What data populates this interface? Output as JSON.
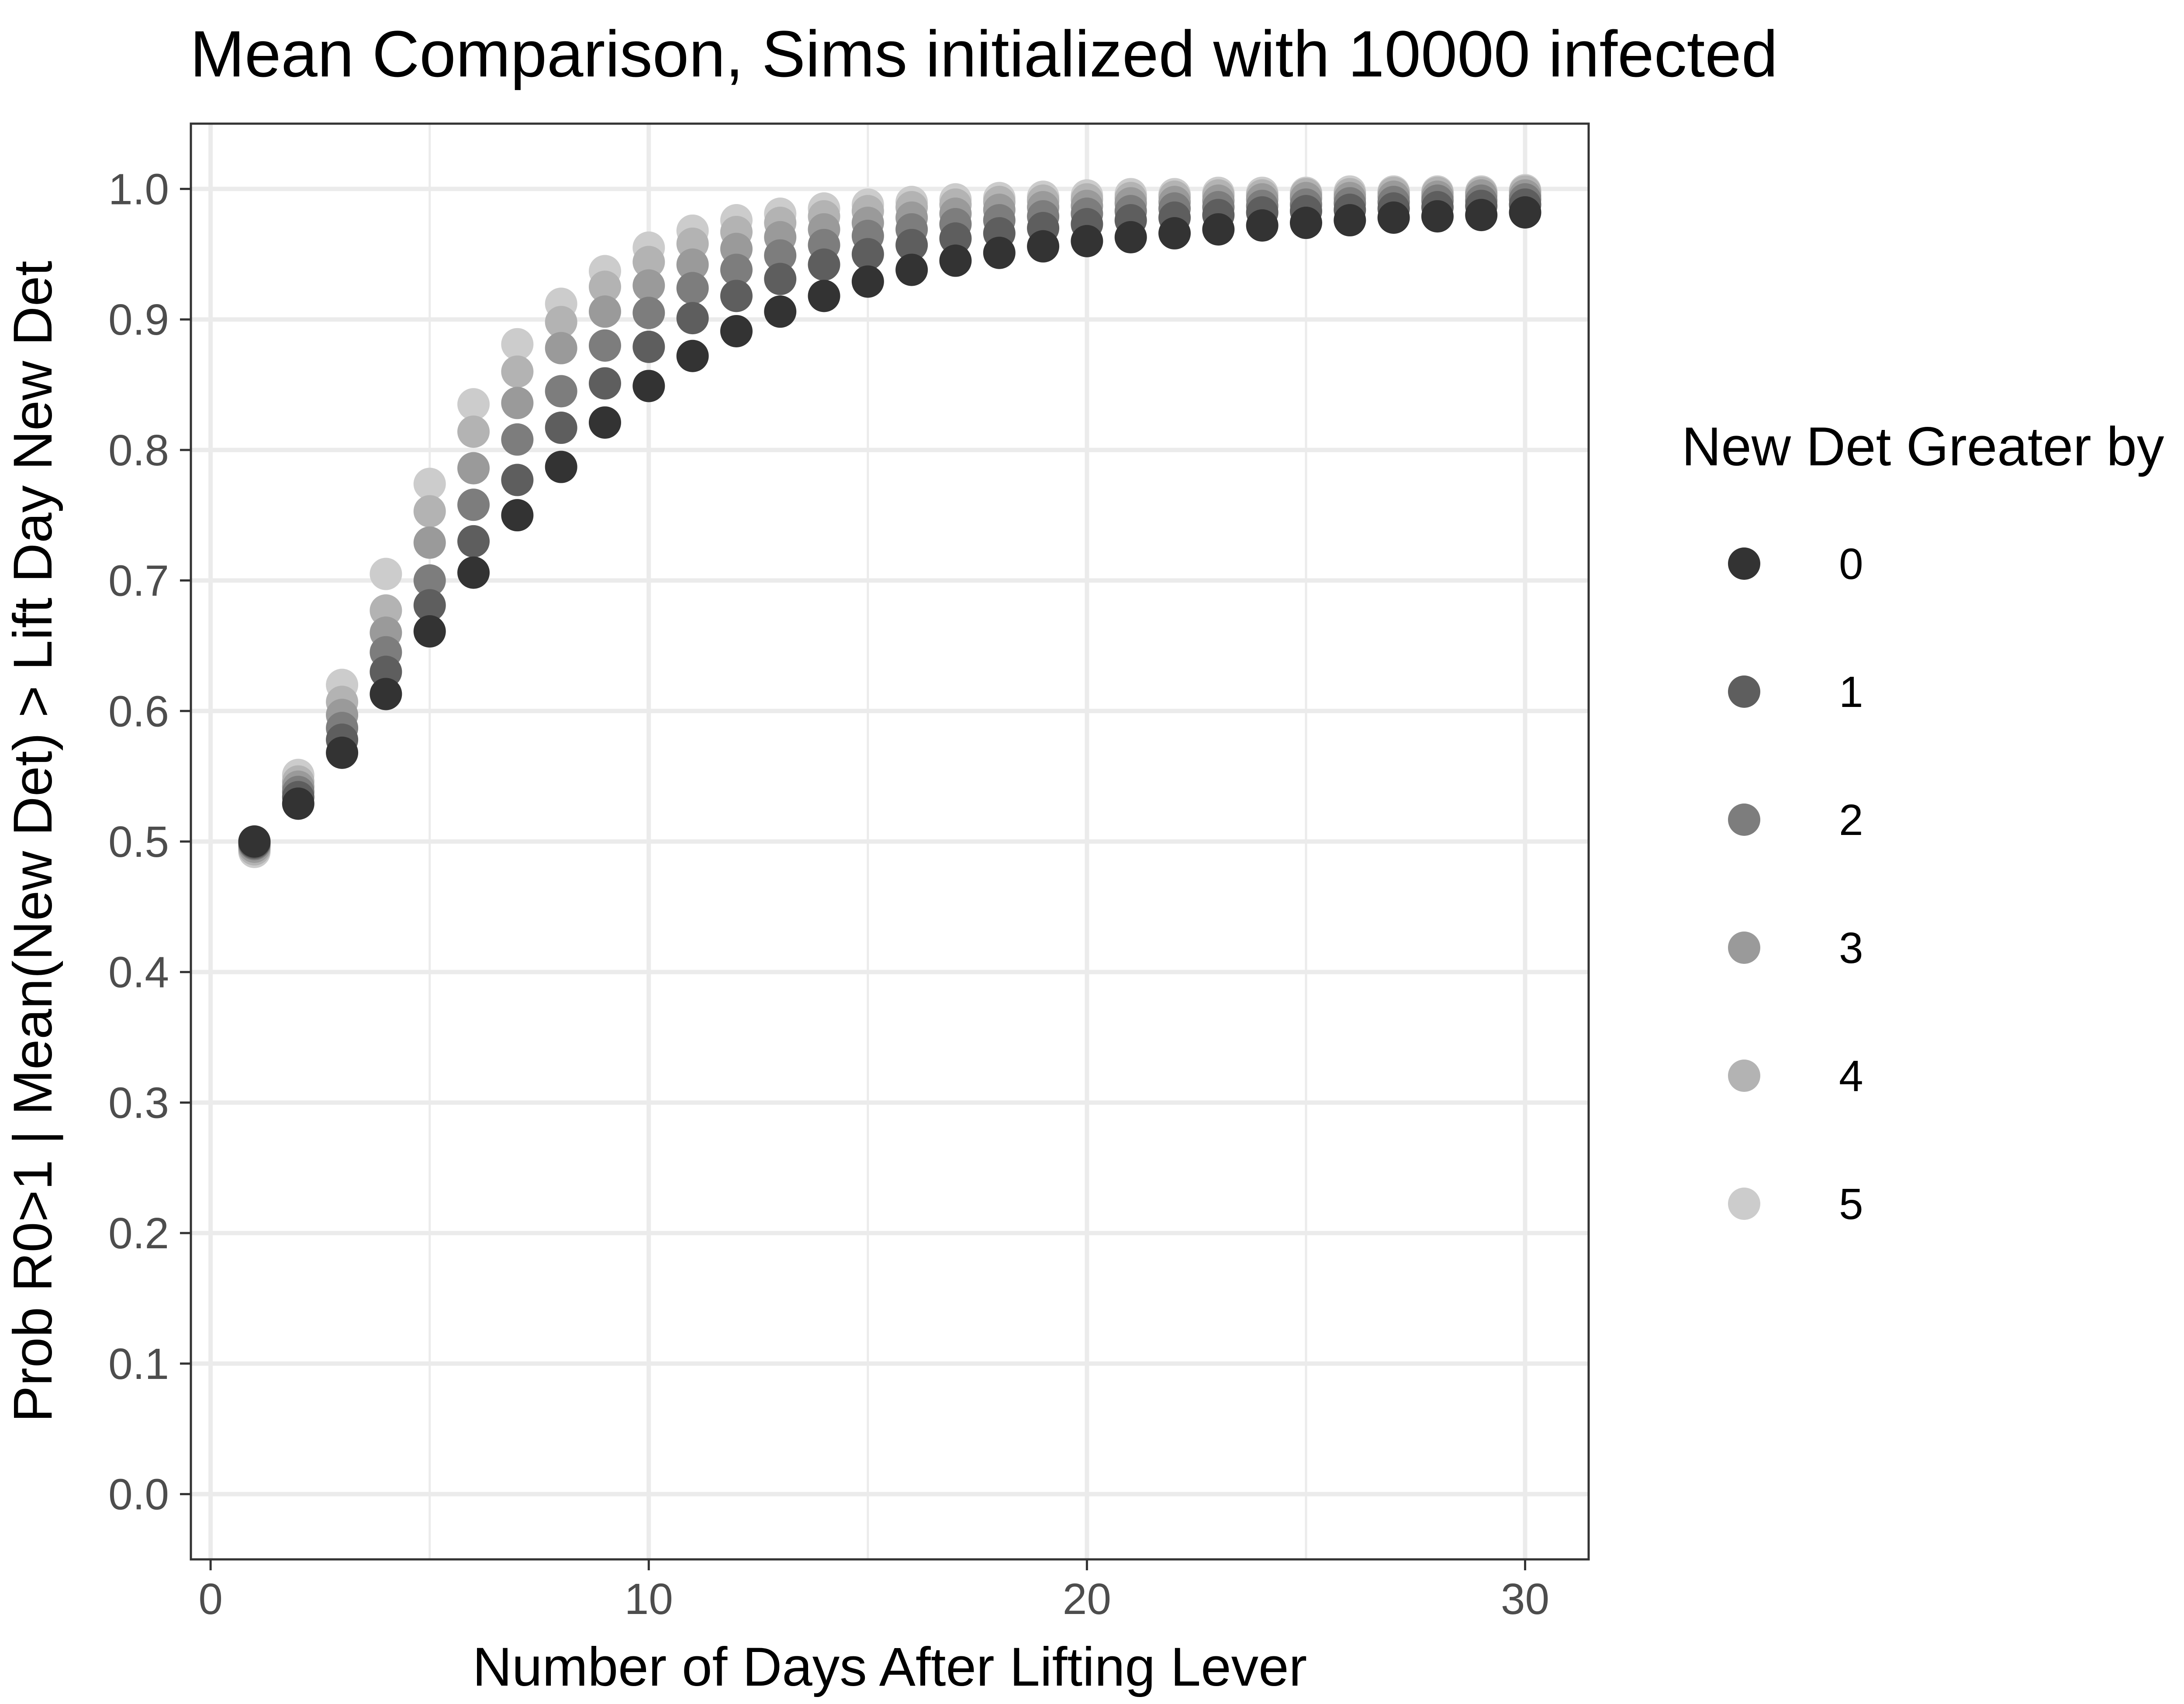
{
  "chart_data": {
    "type": "scatter",
    "title": "Mean Comparison, Sims initialized with 10000 infected",
    "xlabel": "Number of Days After Lifting Lever",
    "ylabel": "Prob R0>1 | Mean(New Det) > Lift Day New Det",
    "xlim": [
      -0.45,
      31.45
    ],
    "ylim": [
      -0.05,
      1.05
    ],
    "x_ticks": [
      0,
      10,
      20,
      30
    ],
    "x_tick_labels": [
      "0",
      "10",
      "20",
      "30"
    ],
    "y_ticks": [
      0.0,
      0.1,
      0.2,
      0.3,
      0.4,
      0.5,
      0.6,
      0.7,
      0.8,
      0.9,
      1.0
    ],
    "y_tick_labels": [
      "0.0",
      "0.1",
      "0.2",
      "0.3",
      "0.4",
      "0.5",
      "0.6",
      "0.7",
      "0.8",
      "0.9",
      "1.0"
    ],
    "grid": true,
    "legend": {
      "title": "New Det Greater by",
      "position": "right"
    },
    "x": [
      1,
      2,
      3,
      4,
      5,
      6,
      7,
      8,
      9,
      10,
      11,
      12,
      13,
      14,
      15,
      16,
      17,
      18,
      19,
      20,
      21,
      22,
      23,
      24,
      25,
      26,
      27,
      28,
      29,
      30
    ],
    "series": [
      {
        "name": "0",
        "color": "#333333",
        "values": [
          0.5,
          0.529,
          0.568,
          0.613,
          0.661,
          0.706,
          0.75,
          0.787,
          0.821,
          0.849,
          0.872,
          0.891,
          0.906,
          0.918,
          0.929,
          0.938,
          0.945,
          0.951,
          0.956,
          0.96,
          0.963,
          0.966,
          0.969,
          0.972,
          0.974,
          0.976,
          0.978,
          0.979,
          0.98,
          0.982
        ]
      },
      {
        "name": "1",
        "color": "#5e5e5e",
        "values": [
          0.499,
          0.534,
          0.578,
          0.63,
          0.681,
          0.73,
          0.777,
          0.817,
          0.851,
          0.879,
          0.901,
          0.918,
          0.931,
          0.942,
          0.95,
          0.957,
          0.962,
          0.966,
          0.97,
          0.973,
          0.976,
          0.978,
          0.98,
          0.982,
          0.983,
          0.984,
          0.985,
          0.986,
          0.987,
          0.988
        ]
      },
      {
        "name": "2",
        "color": "#7d7d7d",
        "values": [
          0.498,
          0.538,
          0.587,
          0.645,
          0.7,
          0.758,
          0.808,
          0.845,
          0.88,
          0.905,
          0.924,
          0.938,
          0.949,
          0.957,
          0.964,
          0.969,
          0.973,
          0.976,
          0.979,
          0.981,
          0.983,
          0.985,
          0.986,
          0.987,
          0.988,
          0.989,
          0.99,
          0.991,
          0.991,
          0.992
        ]
      },
      {
        "name": "3",
        "color": "#9a9a9a",
        "values": [
          0.496,
          0.542,
          0.597,
          0.66,
          0.729,
          0.786,
          0.836,
          0.878,
          0.906,
          0.926,
          0.942,
          0.954,
          0.963,
          0.969,
          0.974,
          0.978,
          0.981,
          0.984,
          0.986,
          0.987,
          0.989,
          0.99,
          0.991,
          0.992,
          0.993,
          0.993,
          0.994,
          0.994,
          0.995,
          0.995
        ]
      },
      {
        "name": "4",
        "color": "#b3b3b3",
        "values": [
          0.494,
          0.546,
          0.607,
          0.677,
          0.753,
          0.814,
          0.86,
          0.898,
          0.925,
          0.944,
          0.958,
          0.967,
          0.974,
          0.979,
          0.983,
          0.986,
          0.988,
          0.99,
          0.991,
          0.992,
          0.993,
          0.994,
          0.995,
          0.995,
          0.996,
          0.996,
          0.997,
          0.997,
          0.997,
          0.998
        ]
      },
      {
        "name": "5",
        "color": "#cccccc",
        "values": [
          0.492,
          0.551,
          0.62,
          0.705,
          0.774,
          0.835,
          0.881,
          0.912,
          0.937,
          0.955,
          0.968,
          0.976,
          0.981,
          0.985,
          0.988,
          0.99,
          0.992,
          0.993,
          0.994,
          0.995,
          0.996,
          0.996,
          0.997,
          0.997,
          0.997,
          0.998,
          0.998,
          0.998,
          0.998,
          0.999
        ]
      }
    ]
  }
}
